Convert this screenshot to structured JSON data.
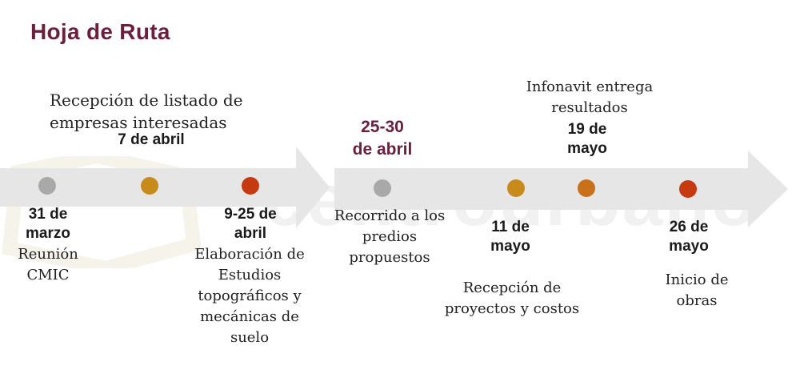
{
  "title": "Hoja de Ruta",
  "watermark": "centrourbano",
  "colors": {
    "title": "#6b1f3f",
    "arrow": "#e6e6e6",
    "dot_gray": "#a9a9a9",
    "dot_gold": "#c98a1c",
    "dot_orange": "#c9701a",
    "dot_red": "#c63a12"
  },
  "milestones": [
    {
      "date_lines": [
        "31 de",
        "marzo"
      ],
      "desc_lines": [
        "Reunión",
        "CMIC"
      ],
      "color": "#a9a9a9"
    },
    {
      "date_lines": [
        "7 de abril"
      ],
      "desc_lines": [
        "Recepción de listado de",
        "empresas interesadas"
      ],
      "color": "#c98a1c"
    },
    {
      "date_lines": [
        "9-25 de",
        "abril"
      ],
      "desc_lines": [
        "Elaboración de",
        "Estudios",
        "topográficos y",
        "mecánicas de",
        "suelo"
      ],
      "color": "#c63a12"
    },
    {
      "date_lines": [
        "25-30",
        "de abril"
      ],
      "desc_lines": [
        "Recorrido a los",
        "predios",
        "propuestos"
      ],
      "color": "#a9a9a9"
    },
    {
      "date_lines": [
        "11 de",
        "mayo"
      ],
      "desc_lines": [
        "Recepción de",
        "proyectos y costos"
      ],
      "color": "#c98a1c"
    },
    {
      "date_lines": [
        "19 de",
        "mayo"
      ],
      "desc_lines": [
        "Infonavit entrega",
        "resultados"
      ],
      "color": "#c9701a"
    },
    {
      "date_lines": [
        "26 de",
        "mayo"
      ],
      "desc_lines": [
        "Inicio de",
        "obras"
      ],
      "color": "#c63a12"
    }
  ]
}
